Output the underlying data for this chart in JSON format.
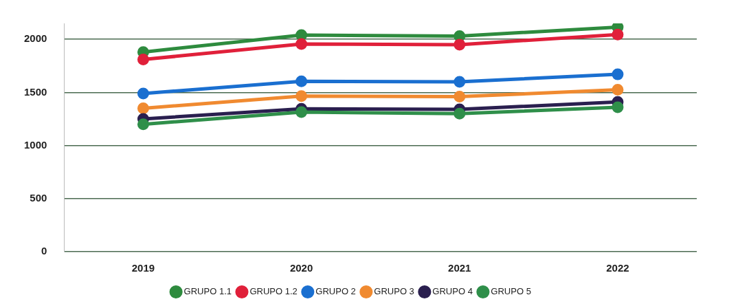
{
  "chart_data": {
    "type": "line",
    "categories": [
      "2019",
      "2020",
      "2021",
      "2022"
    ],
    "series": [
      {
        "name": "GRUPO 1.1",
        "color": "#2e8b3e",
        "values": [
          1880,
          2040,
          2030,
          2115
        ]
      },
      {
        "name": "GRUPO 1.2",
        "color": "#e0203a",
        "values": [
          1810,
          1955,
          1950,
          2045
        ]
      },
      {
        "name": "GRUPO 2",
        "color": "#1a6fd0",
        "values": [
          1490,
          1605,
          1600,
          1670
        ]
      },
      {
        "name": "GRUPO 3",
        "color": "#f08a30",
        "values": [
          1350,
          1465,
          1460,
          1525
        ]
      },
      {
        "name": "GRUPO 4",
        "color": "#2a1f4f",
        "values": [
          1250,
          1345,
          1340,
          1410
        ]
      },
      {
        "name": "GRUPO 5",
        "color": "#2f8f4a",
        "values": [
          1200,
          1315,
          1300,
          1360
        ]
      }
    ],
    "ylim": [
      0,
      2150
    ],
    "yticks": [
      0,
      500,
      1000,
      1500,
      2000
    ],
    "grid": "y",
    "legend": "bottom",
    "marker": "circle",
    "line_style": "solid"
  }
}
